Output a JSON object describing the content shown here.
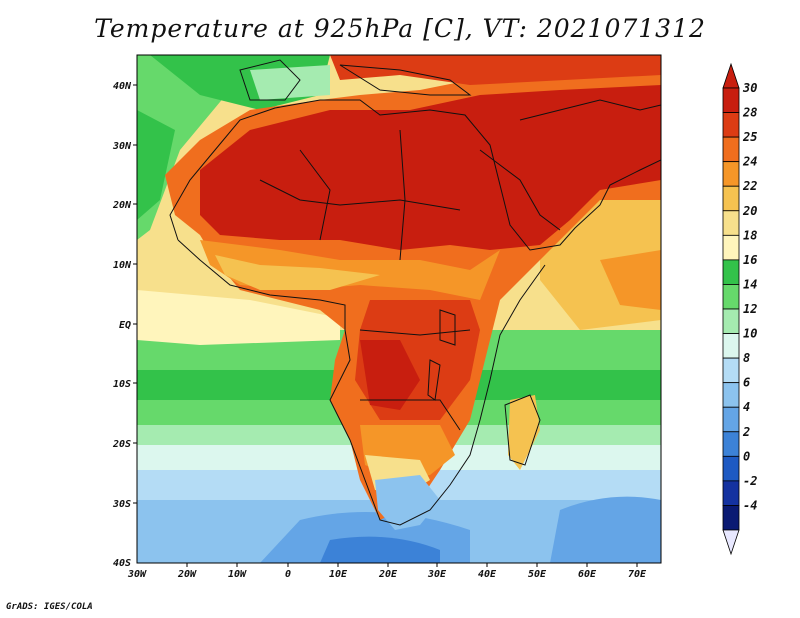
{
  "title": "Temperature at 925hPa [C], VT: 2021071312",
  "credit": "GrADS: IGES/COLA",
  "map": {
    "lat_labels": [
      "40N",
      "30N",
      "20N",
      "10N",
      "EQ",
      "10S",
      "20S",
      "30S",
      "40S"
    ],
    "lon_labels": [
      "30W",
      "20W",
      "10W",
      "0",
      "10E",
      "20E",
      "30E",
      "40E",
      "50E",
      "60E",
      "70E"
    ]
  },
  "colorbar": {
    "levels": [
      {
        "label": "30",
        "color": "#c81e0f"
      },
      {
        "label": "28",
        "color": "#dc3c14"
      },
      {
        "label": "25",
        "color": "#f06e1e"
      },
      {
        "label": "24",
        "color": "#f59628"
      },
      {
        "label": "22",
        "color": "#f5c250"
      },
      {
        "label": "20",
        "color": "#f7e08c"
      },
      {
        "label": "18",
        "color": "#fff5bc"
      },
      {
        "label": "16",
        "color": "#33c24a"
      },
      {
        "label": "14",
        "color": "#66d96b"
      },
      {
        "label": "12",
        "color": "#a5ebb0"
      },
      {
        "label": "10",
        "color": "#dcf7ee"
      },
      {
        "label": "8",
        "color": "#b4dcf5"
      },
      {
        "label": "6",
        "color": "#8cc3ee"
      },
      {
        "label": "4",
        "color": "#64a5e6"
      },
      {
        "label": "2",
        "color": "#3c82d7"
      },
      {
        "label": "0",
        "color": "#1e5ac3"
      },
      {
        "label": "-2",
        "color": "#1432a0"
      },
      {
        "label": "-4",
        "color": "#0a1a73"
      }
    ],
    "top_arrow_color": "#c81e0f",
    "bottom_arrow_color": "#e8e8ff"
  }
}
